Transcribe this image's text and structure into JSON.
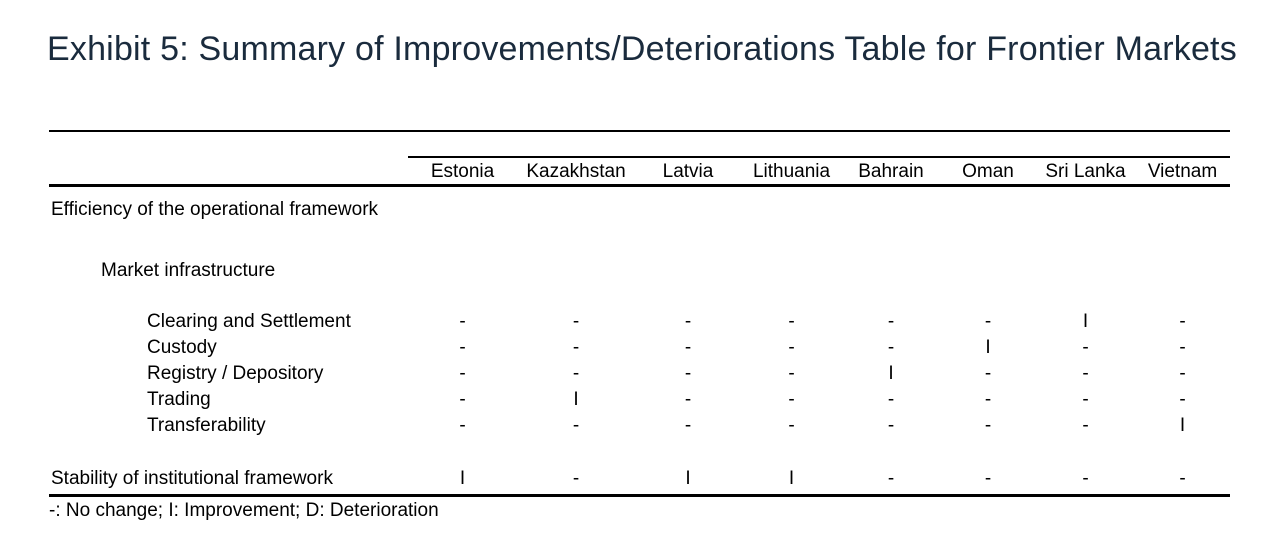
{
  "title": "Exhibit 5: Summary of Improvements/Deteriorations Table for Frontier Markets",
  "colors": {
    "title": "#1a2b3d",
    "text": "#000000",
    "rule": "#000000",
    "background": "#ffffff"
  },
  "table": {
    "columns": [
      "Estonia",
      "Kazakhstan",
      "Latvia",
      "Lithuania",
      "Bahrain",
      "Oman",
      "Sri Lanka",
      "Vietnam"
    ],
    "rows": [
      {
        "label": "Efficiency of the operational framework",
        "type": "section",
        "values": null
      },
      {
        "label": "Market infrastructure",
        "type": "subsection",
        "values": null
      },
      {
        "label": "Clearing and Settlement",
        "type": "item",
        "values": [
          "-",
          "-",
          "-",
          "-",
          "-",
          "-",
          "I",
          "-"
        ]
      },
      {
        "label": "Custody",
        "type": "item",
        "values": [
          "-",
          "-",
          "-",
          "-",
          "-",
          "I",
          "-",
          "-"
        ]
      },
      {
        "label": "Registry / Depository",
        "type": "item",
        "values": [
          "-",
          "-",
          "-",
          "-",
          "I",
          "-",
          "-",
          "-"
        ]
      },
      {
        "label": "Trading",
        "type": "item",
        "values": [
          "-",
          "I",
          "-",
          "-",
          "-",
          "-",
          "-",
          "-"
        ]
      },
      {
        "label": "Transferability",
        "type": "item",
        "values": [
          "-",
          "-",
          "-",
          "-",
          "-",
          "-",
          "-",
          "I"
        ]
      },
      {
        "label": "Stability of institutional framework",
        "type": "total",
        "values": [
          "I",
          "-",
          "I",
          "I",
          "-",
          "-",
          "-",
          "-"
        ]
      }
    ],
    "legend": "-: No change; I: Improvement; D: Deterioration"
  }
}
